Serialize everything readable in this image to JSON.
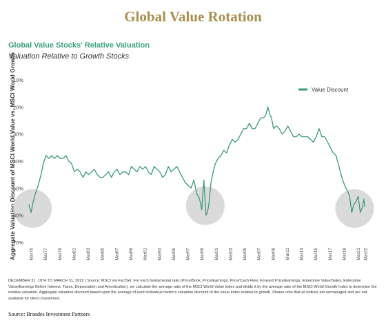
{
  "page": {
    "title": "Global Value Rotation",
    "source": "Source: Brandes Investment Partners",
    "footnote": "DECEMBER 31, 1974 TO MARCH 31, 2022 | Source: MSCI via FactSet. For each fundamental ratio (Price/Book, Price/Earnings, Price/Cash Flow, Forward Price/Earnings, Enterprise Value/Sales, Enterprise Value/Earnings Before Interest, Taxes, Depreciation and Amortization), we calculate the average ratio of the MSCI World Value Index and divide it by the average ratio of the MSCI World Growth Index to determine the relative valuation. Aggregate valuation discount based upon the average of each individual metric's valuation discount of the value index relative to growth. Please note that all indices are unmanaged and are not available for direct investment."
  },
  "chart_data": {
    "type": "line",
    "title": "Global Value Stocks' Relative Valuation",
    "subtitle": "Valuation Relative to Growth Stocks",
    "ylabel": "Aggregate Valuation Discount of MSCI World Value vs. MSCI World Growth",
    "xlabel": "",
    "y_axis_reversed": true,
    "ylim": [
      10,
      70
    ],
    "yticks": [
      "10%",
      "20%",
      "30%",
      "40%",
      "50%",
      "60%",
      "70%"
    ],
    "ytick_values": [
      10,
      20,
      30,
      40,
      50,
      60,
      70
    ],
    "xlim": [
      1975.0,
      2022.5
    ],
    "xticks": [
      "Mar75",
      "Mar77",
      "Mar79",
      "Mar81",
      "Mar83",
      "Mar85",
      "Mar87",
      "Mar89",
      "Mar91",
      "Mar93",
      "Mar95",
      "Mar97",
      "Mar99",
      "Mar01",
      "Mar03",
      "Mar05",
      "Mar07",
      "Mar09",
      "Mar11",
      "Mar13",
      "Mar15",
      "Mar17",
      "Mar19",
      "Mar21",
      "Mar22"
    ],
    "xtick_values": [
      1975.25,
      1977.25,
      1979.25,
      1981.25,
      1983.25,
      1985.25,
      1987.25,
      1989.25,
      1991.25,
      1993.25,
      1995.25,
      1997.25,
      1999.25,
      2001.25,
      2003.25,
      2005.25,
      2007.25,
      2009.25,
      2011.25,
      2013.25,
      2015.25,
      2017.25,
      2019.25,
      2021.25,
      2022.25
    ],
    "grid": false,
    "legend": "top-right",
    "series": [
      {
        "name": "Value Discount",
        "color": "#3a9a78",
        "x": [
          1975.0,
          1975.3,
          1975.6,
          1975.9,
          1976.3,
          1976.7,
          1977.0,
          1977.4,
          1977.8,
          1978.2,
          1978.6,
          1979.0,
          1979.4,
          1979.8,
          1980.2,
          1980.6,
          1981.0,
          1981.4,
          1981.8,
          1982.2,
          1982.6,
          1983.0,
          1983.4,
          1983.8,
          1984.2,
          1984.6,
          1985.0,
          1985.4,
          1985.8,
          1986.2,
          1986.6,
          1987.0,
          1987.4,
          1987.8,
          1988.2,
          1988.6,
          1989.0,
          1989.4,
          1989.8,
          1990.2,
          1990.6,
          1991.0,
          1991.4,
          1991.8,
          1992.2,
          1992.6,
          1993.0,
          1993.4,
          1993.8,
          1994.2,
          1994.6,
          1995.0,
          1995.4,
          1995.8,
          1996.2,
          1996.6,
          1997.0,
          1997.4,
          1997.8,
          1998.2,
          1998.6,
          1999.0,
          1999.3,
          1999.6,
          1999.9,
          2000.1,
          2000.3,
          2000.6,
          2000.9,
          2001.2,
          2001.6,
          2002.0,
          2002.4,
          2002.8,
          2003.2,
          2003.6,
          2004.0,
          2004.4,
          2004.8,
          2005.2,
          2005.6,
          2006.0,
          2006.4,
          2006.8,
          2007.2,
          2007.6,
          2008.0,
          2008.3,
          2008.6,
          2008.9,
          2009.1,
          2009.4,
          2009.8,
          2010.2,
          2010.6,
          2011.0,
          2011.4,
          2011.8,
          2012.2,
          2012.6,
          2013.0,
          2013.4,
          2013.8,
          2014.2,
          2014.6,
          2015.0,
          2015.4,
          2015.8,
          2016.2,
          2016.6,
          2017.0,
          2017.4,
          2017.8,
          2018.2,
          2018.6,
          2019.0,
          2019.4,
          2019.8,
          2020.1,
          2020.4,
          2020.7,
          2021.0,
          2021.3,
          2021.6,
          2021.9,
          2022.1,
          2022.25
        ],
        "y": [
          56,
          59,
          55,
          52,
          49,
          45,
          41,
          38,
          39,
          38,
          39,
          38,
          39,
          39,
          38,
          40,
          41,
          44,
          43,
          44,
          46,
          44,
          45,
          44,
          43,
          45,
          46,
          46,
          45,
          44,
          46,
          44,
          43,
          45,
          44,
          44,
          45,
          42,
          43,
          44,
          42,
          43,
          42,
          44,
          45,
          42,
          43,
          44,
          46,
          45,
          42,
          44,
          43,
          42,
          44,
          46,
          48,
          49,
          50,
          47,
          52,
          54,
          58,
          47,
          60,
          59,
          56,
          48,
          44,
          41,
          39,
          38,
          36,
          37,
          34,
          32,
          33,
          32,
          30,
          28,
          28,
          26,
          28,
          28,
          26,
          24,
          24,
          23,
          20,
          23,
          24,
          28,
          27,
          28,
          30,
          29,
          27,
          29,
          31,
          31,
          30,
          31,
          31,
          31,
          32,
          33,
          31,
          28,
          31,
          31,
          33,
          35,
          37,
          38,
          42,
          46,
          49,
          51,
          53,
          59,
          56,
          55,
          53,
          59,
          57,
          54,
          57
        ]
      }
    ]
  }
}
